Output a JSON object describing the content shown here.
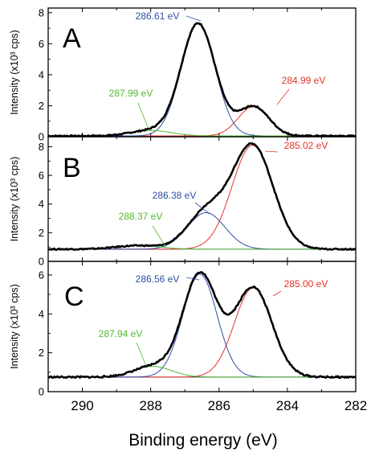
{
  "colors": {
    "total": "#000000",
    "peak_285": "#e8302a",
    "peak_286": "#2d4ea6",
    "peak_288": "#52b92f",
    "baseline": "#3a3a6a",
    "axis": "#000000"
  },
  "chart_data": {
    "type": "line",
    "xlabel": "Binding energy (eV)",
    "xlim": [
      291,
      282
    ],
    "x_reversed": true,
    "x_ticks": [
      290,
      288,
      286,
      284,
      282
    ],
    "shared_x_axis": true,
    "panels": [
      {
        "letter": "A",
        "ylabel": "Intensity (x10³ cps)",
        "ylim": [
          0,
          8.3
        ],
        "y_ticks": [
          0,
          2,
          4,
          6,
          8
        ],
        "baseline": 0.05,
        "series": [
          {
            "role": "total",
            "color": "#000000",
            "description": "experimental envelope"
          },
          {
            "label": "284.99 eV",
            "center": 284.99,
            "height": 1.9,
            "sigma": 0.45,
            "color": "#e8302a"
          },
          {
            "label": "286.61 eV",
            "center": 286.61,
            "height": 7.25,
            "sigma": 0.5,
            "color": "#2d4ea6"
          },
          {
            "label": "287.99 eV",
            "center": 287.99,
            "height": 0.35,
            "sigma": 0.6,
            "color": "#52b92f"
          }
        ],
        "peak_maxima": {
          "total_max": 7.7,
          "total_second": 2.05
        }
      },
      {
        "letter": "B",
        "ylabel": "Intensity (x10³ cps)",
        "ylim": [
          0,
          8.7
        ],
        "y_ticks": [
          0,
          2,
          4,
          6,
          8
        ],
        "baseline": 0.85,
        "series": [
          {
            "role": "total",
            "color": "#000000",
            "description": "experimental envelope"
          },
          {
            "label": "285.02 eV",
            "center": 285.02,
            "height": 7.25,
            "sigma": 0.6,
            "color": "#e8302a"
          },
          {
            "label": "286.38 eV",
            "center": 286.38,
            "height": 2.55,
            "sigma": 0.55,
            "color": "#2d4ea6"
          },
          {
            "label": "288.37 eV",
            "center": 288.37,
            "height": 0.25,
            "sigma": 0.65,
            "color": "#52b92f"
          }
        ],
        "peak_maxima": {
          "total_max": 8.15
        }
      },
      {
        "letter": "C",
        "ylabel": "Intensity (x10³ cps)",
        "ylim": [
          0,
          6.7
        ],
        "y_ticks": [
          0,
          2,
          4,
          6
        ],
        "baseline": 0.75,
        "series": [
          {
            "role": "total",
            "color": "#000000",
            "description": "experimental envelope"
          },
          {
            "label": "285.00 eV",
            "center": 285.0,
            "height": 4.6,
            "sigma": 0.55,
            "color": "#e8302a"
          },
          {
            "label": "286.56 eV",
            "center": 286.56,
            "height": 5.3,
            "sigma": 0.5,
            "color": "#2d4ea6"
          },
          {
            "label": "287.94 eV",
            "center": 287.94,
            "height": 0.55,
            "sigma": 0.55,
            "color": "#52b92f"
          }
        ],
        "peak_maxima": {
          "total_max": 6.3,
          "total_second": 5.5
        }
      }
    ]
  }
}
